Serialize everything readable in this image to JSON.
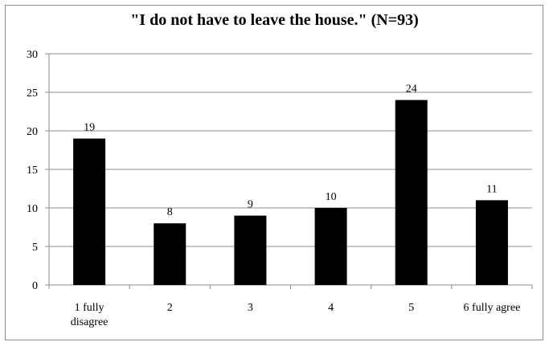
{
  "chart_data": {
    "type": "bar",
    "title": "\"I do not have to leave the house.\" (N=93)",
    "categories": [
      [
        "1 fully",
        "disagree"
      ],
      [
        "2"
      ],
      [
        "3"
      ],
      [
        "4"
      ],
      [
        "5"
      ],
      [
        "6 fully agree"
      ]
    ],
    "values": [
      19,
      8,
      9,
      10,
      24,
      11
    ],
    "data_labels": [
      "19",
      "8",
      "9",
      "10",
      "24",
      "11"
    ],
    "yticks": [
      "0",
      "5",
      "10",
      "15",
      "20",
      "25",
      "30"
    ],
    "ylim": [
      0,
      30
    ],
    "grid": true,
    "bar_color": "#000000",
    "grid_color": "#8c8c8c"
  }
}
